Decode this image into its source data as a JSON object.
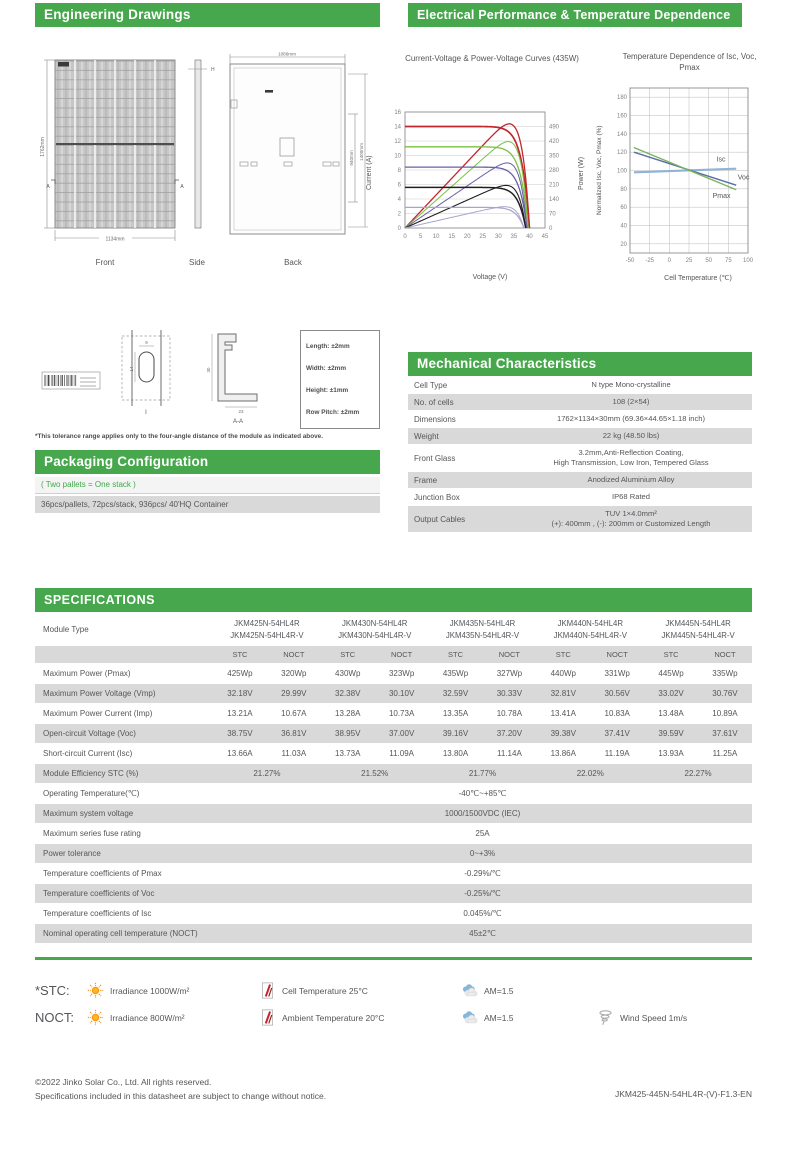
{
  "palette": {
    "accent_green": "#46a74c",
    "row_gray": "#d9d9d9",
    "text": "#55565a"
  },
  "headers": {
    "engineering": "Engineering Drawings",
    "electrical": "Electrical Performance & Temperature Dependence",
    "mechanical": "Mechanical Characteristics",
    "packaging": "Packaging Configuration",
    "specifications": "SPECIFICATIONS"
  },
  "engineering": {
    "captions": {
      "front": "Front",
      "side": "Side",
      "back": "Back"
    },
    "dimensions": {
      "front_height": "1762mm",
      "front_width": "1134mm",
      "side_height": "H",
      "back_width": "1086mm",
      "back_hole_span": "940mm",
      "back_height_span": "1400mm",
      "section_marker": "A",
      "detail_label": "I",
      "section_label": "A-A",
      "slot_width": "9",
      "slot_height": "14",
      "frame_height": "30",
      "frame_foot": "23"
    }
  },
  "tolerance": {
    "items": [
      "Length: ±2mm",
      "Width: ±2mm",
      "Height: ±1mm",
      "Row Pitch: ±2mm"
    ],
    "note": "*This tolerance range applies only to the four-angle distance of the module as indicated above."
  },
  "packaging": {
    "subtitle": "( Two pallets = One stack )",
    "detail": "36pcs/pallets, 72pcs/stack, 936pcs/ 40'HQ Container"
  },
  "mechanical": {
    "rows": [
      {
        "label": "Cell  Type",
        "value": "N type Mono-crystalline"
      },
      {
        "label": "No. of cells",
        "value": "108 (2×54)"
      },
      {
        "label": "Dimensions",
        "value": "1762×1134×30mm (69.36×44.65×1.18 inch)"
      },
      {
        "label": "Weight",
        "value": "22 kg (48.50 lbs)"
      },
      {
        "label": "Front Glass",
        "value": "3.2mm,Anti-Reflection Coating,\nHigh Transmission, Low Iron, Tempered Glass"
      },
      {
        "label": "Frame",
        "value": "Anodized Aluminium Alloy"
      },
      {
        "label": "Junction Box",
        "value": "IP68 Rated"
      },
      {
        "label": "Output Cables",
        "value": "TUV  1×4.0mm²\n(+): 400mm , (-): 200mm or Customized Length"
      }
    ]
  },
  "specifications": {
    "module_type_label": "Module Type",
    "modules": [
      {
        "name": "JKM425N-54HL4R",
        "variant": "JKM425N-54HL4R-V"
      },
      {
        "name": "JKM430N-54HL4R",
        "variant": "JKM430N-54HL4R-V"
      },
      {
        "name": "JKM435N-54HL4R",
        "variant": "JKM435N-54HL4R-V"
      },
      {
        "name": "JKM440N-54HL4R",
        "variant": "JKM440N-54HL4R-V"
      },
      {
        "name": "JKM445N-54HL4R",
        "variant": "JKM445N-54HL4R-V"
      }
    ],
    "condition_labels": [
      "STC",
      "NOCT"
    ],
    "electrical_rows": [
      {
        "label": "Maximum Power (Pmax)",
        "values": [
          "425Wp",
          "320Wp",
          "430Wp",
          "323Wp",
          "435Wp",
          "327Wp",
          "440Wp",
          "331Wp",
          "445Wp",
          "335Wp"
        ]
      },
      {
        "label": "Maximum Power Voltage (Vmp)",
        "values": [
          "32.18V",
          "29.99V",
          "32.38V",
          "30.10V",
          "32.59V",
          "30.33V",
          "32.81V",
          "30.56V",
          "33.02V",
          "30.76V"
        ]
      },
      {
        "label": "Maximum Power Current (Imp)",
        "values": [
          "13.21A",
          "10.67A",
          "13.28A",
          "10.73A",
          "13.35A",
          "10.78A",
          "13.41A",
          "10.83A",
          "13.48A",
          "10.89A"
        ]
      },
      {
        "label": "Open-circuit Voltage (Voc)",
        "values": [
          "38.75V",
          "36.81V",
          "38.95V",
          "37.00V",
          "39.16V",
          "37.20V",
          "39.38V",
          "37.41V",
          "39.59V",
          "37.61V"
        ]
      },
      {
        "label": "Short-circuit Current (Isc)",
        "values": [
          "13.66A",
          "11.03A",
          "13.73A",
          "11.09A",
          "13.80A",
          "11.14A",
          "13.86A",
          "11.19A",
          "13.93A",
          "11.25A"
        ]
      }
    ],
    "efficiency_row": {
      "label": "Module Efficiency STC (%)",
      "values": [
        "21.27%",
        "21.52%",
        "21.77%",
        "22.02%",
        "22.27%"
      ]
    },
    "single_rows": [
      {
        "label": "Operating Temperature(℃)",
        "value": "-40℃~+85℃"
      },
      {
        "label": "Maximum system voltage",
        "value": "1000/1500VDC (IEC)"
      },
      {
        "label": "Maximum series fuse rating",
        "value": "25A"
      },
      {
        "label": "Power tolerance",
        "value": "0~+3%"
      },
      {
        "label": "Temperature coefficients of Pmax",
        "value": "-0.29%/℃"
      },
      {
        "label": "Temperature coefficients of Voc",
        "value": "-0.25%/℃"
      },
      {
        "label": "Temperature coefficients of Isc",
        "value": "0.045%/℃"
      },
      {
        "label": "Nominal operating cell temperature  (NOCT)",
        "value": "45±2℃"
      }
    ]
  },
  "legend": {
    "rows": [
      {
        "label": "*STC:",
        "items": [
          {
            "icon": "sun-icon",
            "text": "Irradiance 1000W/m²"
          },
          {
            "icon": "thermometer-icon",
            "text": "Cell Temperature 25°C"
          },
          {
            "icon": "cloud-icon",
            "text": "AM=1.5"
          }
        ]
      },
      {
        "label": "NOCT:",
        "items": [
          {
            "icon": "sun-icon",
            "text": "Irradiance 800W/m²"
          },
          {
            "icon": "thermometer-icon",
            "text": "Ambient Temperature 20°C"
          },
          {
            "icon": "cloud-icon",
            "text": "AM=1.5"
          },
          {
            "icon": "wind-icon",
            "text": "Wind Speed 1m/s"
          }
        ]
      }
    ]
  },
  "footer": {
    "copyright": "©2022 Jinko Solar Co., Ltd. All rights reserved.",
    "notice": "Specifications included in this datasheet are subject to change without notice.",
    "doc_code": "JKM425-445N-54HL4R-(V)-F1.3-EN"
  },
  "chart_data": [
    {
      "id": "iv-pv-curves",
      "type": "line",
      "title": "Current-Voltage & Power-Voltage Curves (435W)",
      "xlabel": "Voltage (V)",
      "ylabel_left": "Current (A)",
      "ylabel_right": "Power (W)",
      "xlim": [
        0,
        45
      ],
      "xticks": [
        0,
        5,
        10,
        15,
        20,
        25,
        30,
        35,
        40,
        45
      ],
      "ylim_left": [
        0,
        16
      ],
      "yticks_left": [
        0,
        2,
        4,
        6,
        8,
        10,
        12,
        14,
        16
      ],
      "ylim_right": [
        0,
        490
      ],
      "yticks_right": [
        0,
        70,
        140,
        210,
        280,
        350,
        420,
        490
      ],
      "grid": "horizontal",
      "series": [
        {
          "name": "curve-1",
          "color": "#c1272d",
          "lw": 1.7,
          "isc_a": 14.0,
          "voc_v": 40.0,
          "pmax_w": 440
        },
        {
          "name": "curve-2",
          "color": "#7ac143",
          "lw": 1.3,
          "isc_a": 11.2,
          "voc_v": 39.6,
          "pmax_w": 365
        },
        {
          "name": "curve-3",
          "color": "#6a5fa7",
          "lw": 1.3,
          "isc_a": 8.4,
          "voc_v": 39.2,
          "pmax_w": 275
        },
        {
          "name": "curve-4",
          "color": "#231f20",
          "lw": 1.5,
          "isc_a": 5.6,
          "voc_v": 38.8,
          "pmax_w": 180
        },
        {
          "name": "curve-5",
          "color": "#a9a3ce",
          "lw": 1.2,
          "isc_a": 2.85,
          "voc_v": 38.2,
          "pmax_w": 90
        }
      ]
    },
    {
      "id": "temperature-dependence",
      "type": "line",
      "title": "Temperature Dependence of Isc, Voc, Pmax",
      "xlabel": "Cell Temperature (℃)",
      "ylabel": "Normalized Isc, Voc, Pmax (%)",
      "xlim": [
        -50,
        100
      ],
      "xticks": [
        -50,
        -25,
        0,
        25,
        50,
        75,
        100
      ],
      "ylim": [
        10,
        190
      ],
      "yticks": [
        20,
        40,
        60,
        80,
        100,
        120,
        140,
        160,
        180
      ],
      "grid": "both",
      "series": [
        {
          "name": "Isc",
          "color": "#8fb3d9",
          "lw": 2.2,
          "x": [
            -45,
            85
          ],
          "y": [
            98,
            102
          ],
          "label_pos": [
            60,
            110
          ]
        },
        {
          "name": "Voc",
          "color": "#5b6ea6",
          "lw": 1.4,
          "x": [
            -45,
            85
          ],
          "y": [
            120,
            84
          ],
          "label_pos": [
            87,
            90
          ]
        },
        {
          "name": "Pmax",
          "color": "#79b55a",
          "lw": 1.4,
          "x": [
            -45,
            85
          ],
          "y": [
            125,
            79
          ],
          "label_pos": [
            55,
            70
          ]
        }
      ]
    }
  ]
}
